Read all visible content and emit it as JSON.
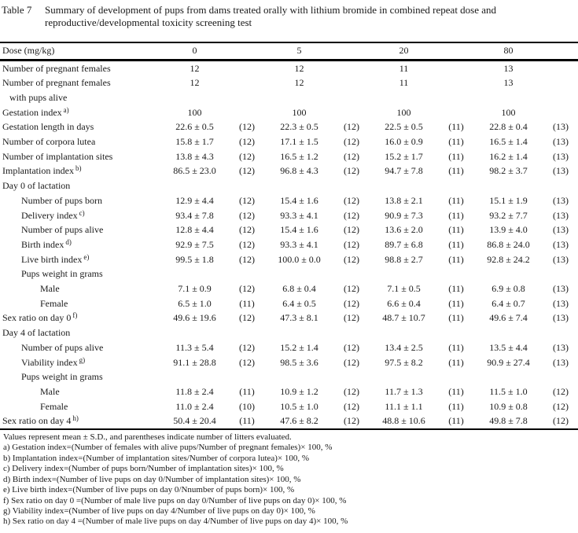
{
  "caption": {
    "label": "Table 7",
    "text": "Summary of development of pups from dams treated orally with lithium bromide in combined repeat dose and reproductive/developmental toxicity screening test"
  },
  "header": {
    "label": "Dose (mg/kg)",
    "doses": [
      "0",
      "5",
      "20",
      "80"
    ]
  },
  "rows": [
    {
      "label": "Number of pregnant females",
      "sup": "",
      "indent": 0,
      "cells": [
        {
          "v": "12",
          "n": ""
        },
        {
          "v": "12",
          "n": ""
        },
        {
          "v": "11",
          "n": ""
        },
        {
          "v": "13",
          "n": ""
        }
      ]
    },
    {
      "label": "Number of pregnant females",
      "sup": "",
      "indent": 0,
      "cells": [
        {
          "v": "12",
          "n": ""
        },
        {
          "v": "12",
          "n": ""
        },
        {
          "v": "11",
          "n": ""
        },
        {
          "v": "13",
          "n": ""
        }
      ]
    },
    {
      "label": "with pups alive",
      "sup": "",
      "indent": 1,
      "cells": []
    },
    {
      "label": "Gestation index",
      "sup": "a)",
      "indent": 0,
      "cells": [
        {
          "v": "100",
          "n": ""
        },
        {
          "v": "100",
          "n": ""
        },
        {
          "v": "100",
          "n": ""
        },
        {
          "v": "100",
          "n": ""
        }
      ]
    },
    {
      "label": "Gestation length in days",
      "sup": "",
      "indent": 0,
      "cells": [
        {
          "v": "22.6 ± 0.5",
          "n": "(12)"
        },
        {
          "v": "22.3 ± 0.5",
          "n": "(12)"
        },
        {
          "v": "22.5 ± 0.5",
          "n": "(11)"
        },
        {
          "v": "22.8 ± 0.4",
          "n": "(13)"
        }
      ]
    },
    {
      "label": "Number of corpora lutea",
      "sup": "",
      "indent": 0,
      "cells": [
        {
          "v": "15.8 ± 1.7",
          "n": "(12)"
        },
        {
          "v": "17.1 ± 1.5",
          "n": "(12)"
        },
        {
          "v": "16.0 ± 0.9",
          "n": "(11)"
        },
        {
          "v": "16.5 ± 1.4",
          "n": "(13)"
        }
      ]
    },
    {
      "label": "Number of implantation sites",
      "sup": "",
      "indent": 0,
      "cells": [
        {
          "v": "13.8 ± 4.3",
          "n": "(12)"
        },
        {
          "v": "16.5 ± 1.2",
          "n": "(12)"
        },
        {
          "v": "15.2 ± 1.7",
          "n": "(11)"
        },
        {
          "v": "16.2 ± 1.4",
          "n": "(13)"
        }
      ]
    },
    {
      "label": "Implantation index",
      "sup": "b)",
      "indent": 0,
      "cells": [
        {
          "v": "86.5 ± 23.0",
          "n": "(12)"
        },
        {
          "v": "96.8 ± 4.3",
          "n": "(12)"
        },
        {
          "v": "94.7 ± 7.8",
          "n": "(11)"
        },
        {
          "v": "98.2 ± 3.7",
          "n": "(13)"
        }
      ]
    },
    {
      "label": "Day 0 of lactation",
      "sup": "",
      "indent": 0,
      "cells": []
    },
    {
      "label": "Number of pups born",
      "sup": "",
      "indent": 2,
      "cells": [
        {
          "v": "12.9 ± 4.4",
          "n": "(12)"
        },
        {
          "v": "15.4 ± 1.6",
          "n": "(12)"
        },
        {
          "v": "13.8 ± 2.1",
          "n": "(11)"
        },
        {
          "v": "15.1 ± 1.9",
          "n": "(13)"
        }
      ]
    },
    {
      "label": "Delivery index",
      "sup": "c)",
      "indent": 2,
      "cells": [
        {
          "v": "93.4 ± 7.8",
          "n": "(12)"
        },
        {
          "v": "93.3 ± 4.1",
          "n": "(12)"
        },
        {
          "v": "90.9 ± 7.3",
          "n": "(11)"
        },
        {
          "v": "93.2 ± 7.7",
          "n": "(13)"
        }
      ]
    },
    {
      "label": "Number of pups alive",
      "sup": "",
      "indent": 2,
      "cells": [
        {
          "v": "12.8 ± 4.4",
          "n": "(12)"
        },
        {
          "v": "15.4 ± 1.6",
          "n": "(12)"
        },
        {
          "v": "13.6 ± 2.0",
          "n": "(11)"
        },
        {
          "v": "13.9 ± 4.0",
          "n": "(13)"
        }
      ]
    },
    {
      "label": "Birth index",
      "sup": "d)",
      "indent": 2,
      "cells": [
        {
          "v": "92.9 ± 7.5",
          "n": "(12)"
        },
        {
          "v": "93.3 ± 4.1",
          "n": "(12)"
        },
        {
          "v": "89.7 ± 6.8",
          "n": "(11)"
        },
        {
          "v": "86.8 ± 24.0",
          "n": "(13)"
        }
      ]
    },
    {
      "label": "Live birth index",
      "sup": "e)",
      "indent": 2,
      "cells": [
        {
          "v": "99.5 ± 1.8",
          "n": "(12)"
        },
        {
          "v": "100.0 ± 0.0",
          "n": "(12)"
        },
        {
          "v": "98.8 ± 2.7",
          "n": "(11)"
        },
        {
          "v": "92.8 ± 24.2",
          "n": "(13)"
        }
      ]
    },
    {
      "label": "Pups weight in grams",
      "sup": "",
      "indent": 2,
      "cells": []
    },
    {
      "label": "Male",
      "sup": "",
      "indent": 3,
      "cells": [
        {
          "v": "7.1 ± 0.9",
          "n": "(12)"
        },
        {
          "v": "6.8 ± 0.4",
          "n": "(12)"
        },
        {
          "v": "7.1 ± 0.5",
          "n": "(11)"
        },
        {
          "v": "6.9 ± 0.8",
          "n": "(13)"
        }
      ]
    },
    {
      "label": "Female",
      "sup": "",
      "indent": 3,
      "cells": [
        {
          "v": "6.5 ± 1.0",
          "n": "(11)"
        },
        {
          "v": "6.4 ± 0.5",
          "n": "(12)"
        },
        {
          "v": "6.6 ± 0.4",
          "n": "(11)"
        },
        {
          "v": "6.4 ± 0.7",
          "n": "(13)"
        }
      ]
    },
    {
      "label": "Sex ratio on day 0",
      "sup": "f)",
      "indent": 0,
      "cells": [
        {
          "v": "49.6 ± 19.6",
          "n": "(12)"
        },
        {
          "v": "47.3 ± 8.1",
          "n": "(12)"
        },
        {
          "v": "48.7 ± 10.7",
          "n": "(11)"
        },
        {
          "v": "49.6 ± 7.4",
          "n": "(13)"
        }
      ]
    },
    {
      "label": "Day 4 of lactation",
      "sup": "",
      "indent": 0,
      "cells": []
    },
    {
      "label": "Number of pups alive",
      "sup": "",
      "indent": 2,
      "cells": [
        {
          "v": "11.3 ± 5.4",
          "n": "(12)"
        },
        {
          "v": "15.2 ± 1.4",
          "n": "(12)"
        },
        {
          "v": "13.4 ± 2.5",
          "n": "(11)"
        },
        {
          "v": "13.5 ± 4.4",
          "n": "(13)"
        }
      ]
    },
    {
      "label": "Viability index",
      "sup": "g)",
      "indent": 2,
      "cells": [
        {
          "v": "91.1 ± 28.8",
          "n": "(12)"
        },
        {
          "v": "98.5 ± 3.6",
          "n": "(12)"
        },
        {
          "v": "97.5 ± 8.2",
          "n": "(11)"
        },
        {
          "v": "90.9 ± 27.4",
          "n": "(13)"
        }
      ]
    },
    {
      "label": "Pups weight in grams",
      "sup": "",
      "indent": 2,
      "cells": []
    },
    {
      "label": "Male",
      "sup": "",
      "indent": 3,
      "cells": [
        {
          "v": "11.8 ± 2.4",
          "n": "(11)"
        },
        {
          "v": "10.9 ± 1.2",
          "n": "(12)"
        },
        {
          "v": "11.7 ± 1.3",
          "n": "(11)"
        },
        {
          "v": "11.5 ± 1.0",
          "n": "(12)"
        }
      ]
    },
    {
      "label": "Female",
      "sup": "",
      "indent": 3,
      "cells": [
        {
          "v": "11.0 ± 2.4",
          "n": "(10)"
        },
        {
          "v": "10.5 ± 1.0",
          "n": "(12)"
        },
        {
          "v": "11.1 ± 1.1",
          "n": "(11)"
        },
        {
          "v": "10.9 ± 0.8",
          "n": "(12)"
        }
      ]
    },
    {
      "label": "Sex ratio on day 4",
      "sup": "h)",
      "indent": 0,
      "cells": [
        {
          "v": "50.4 ± 20.4",
          "n": "(11)"
        },
        {
          "v": "47.6 ± 8.2",
          "n": "(12)"
        },
        {
          "v": "48.8 ± 10.6",
          "n": "(11)"
        },
        {
          "v": "49.8 ± 7.8",
          "n": "(12)"
        }
      ]
    }
  ],
  "footnotes": {
    "note": "Values represent mean ± S.D., and parentheses indicate number of litters evaluated.",
    "items": [
      "a) Gestation index=(Number of females with alive pups/Number of pregnant females)× 100, %",
      "b) Implantation index=(Number of implantation sites/Number of corpora lutea)× 100, %",
      "c) Delivery index=(Number of pups born/Number of implantation sites)× 100, %",
      "d) Birth index=(Number of live pups on day 0/Number of implantation sites)× 100, %",
      "e) Live birth index=(Number of live pups on day 0/Nnumber of pups born)× 100, %",
      "f) Sex ratio on day 0 =(Number of male live pups on day 0/Number of live pups on day 0)× 100, %",
      "g) Viability index=(Number of live pups on day 4/Number of live pups on day 0)× 100, %",
      "h) Sex ratio on day 4 =(Number of male live pups on day 4/Number of live pups on day 4)× 100, %"
    ]
  }
}
